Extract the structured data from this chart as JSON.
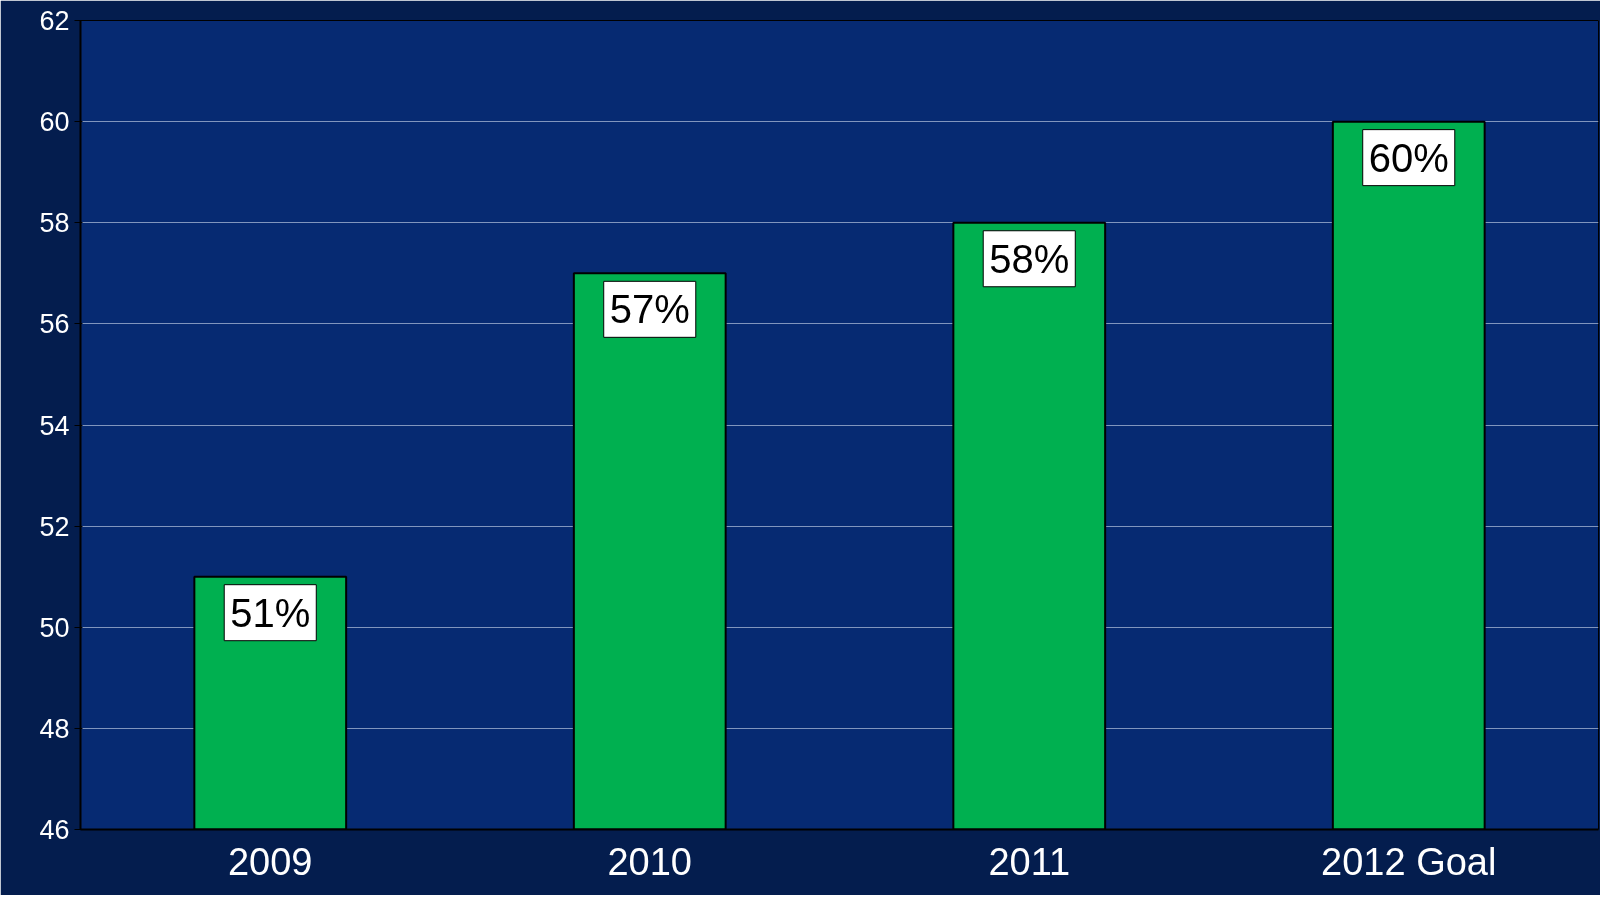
{
  "chart_data": {
    "type": "bar",
    "categories": [
      "2009",
      "2010",
      "2011",
      "2012 Goal"
    ],
    "values": [
      51,
      57,
      58,
      60
    ],
    "value_labels": [
      "51%",
      "57%",
      "58%",
      "60%"
    ],
    "color": "#00b050",
    "ylim": [
      46,
      62
    ],
    "yticks": [
      46,
      48,
      50,
      52,
      54,
      56,
      58,
      60,
      62
    ],
    "grid": "y"
  }
}
